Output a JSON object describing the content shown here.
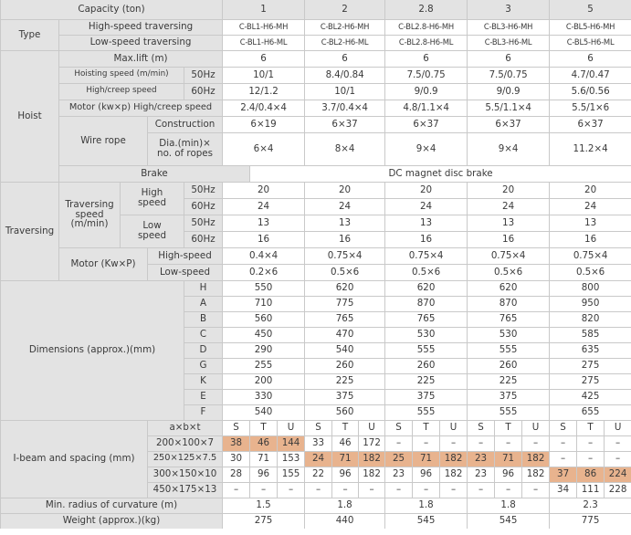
{
  "headers": {
    "capacity_label": "Capacity (ton)",
    "capacities": [
      "1",
      "2",
      "2.8",
      "3",
      "5"
    ]
  },
  "type": {
    "label": "Type",
    "high_speed_label": "High-speed traversing",
    "low_speed_label": "Low-speed traversing",
    "high_speed_models": [
      "C-BL1-H6-MH",
      "C-BL2-H6-MH",
      "C-BL2.8-H6-MH",
      "C-BL3-H6-MH",
      "C-BL5-H6-MH"
    ],
    "low_speed_models": [
      "C-BL1-H6-ML",
      "C-BL2-H6-ML",
      "C-BL2.8-H6-ML",
      "C-BL3-H6-ML",
      "C-BL5-H6-ML"
    ]
  },
  "hoist": {
    "label": "Hoist",
    "max_lift_label": "Max.lift (m)",
    "max_lift": [
      "6",
      "6",
      "6",
      "6",
      "6"
    ],
    "hoisting_speed_label": "Hoisting speed (m/min)",
    "hz50": "50Hz",
    "hz60": "60Hz",
    "hoisting_speed_50": [
      "10/1",
      "8.4/0.84",
      "7.5/0.75",
      "7.5/0.75",
      "4.7/0.47"
    ],
    "high_creep_speed_label": "High/creep speed",
    "hoisting_speed_60": [
      "12/1.2",
      "10/1",
      "9/0.9",
      "9/0.9",
      "5.6/0.56"
    ],
    "motor_label": "Motor (kw×p) High/creep speed",
    "motor": [
      "2.4/0.4×4",
      "3.7/0.4×4",
      "4.8/1.1×4",
      "5.5/1.1×4",
      "5.5/1×6"
    ],
    "wire_rope_label": "Wire rope",
    "construction_label": "Construction",
    "construction": [
      "6×19",
      "6×37",
      "6×37",
      "6×37",
      "6×37"
    ],
    "dia_label_1": "Dia.(min)×",
    "dia_label_2": "no. of ropes",
    "dia": [
      "6×4",
      "8×4",
      "9×4",
      "9×4",
      "11.2×4"
    ]
  },
  "brake": {
    "label": "Brake",
    "value": "DC magnet disc brake"
  },
  "traversing": {
    "label": "Traversing",
    "speed_label_1": "Traversing",
    "speed_label_2": "speed",
    "speed_label_3": "(m/min)",
    "high_label_1": "High",
    "low_label_1": "Low",
    "speed_word": "speed",
    "hz50": "50Hz",
    "hz60": "60Hz",
    "high_50": [
      "20",
      "20",
      "20",
      "20",
      "20"
    ],
    "high_60": [
      "24",
      "24",
      "24",
      "24",
      "24"
    ],
    "low_50": [
      "13",
      "13",
      "13",
      "13",
      "13"
    ],
    "low_60": [
      "16",
      "16",
      "16",
      "16",
      "16"
    ],
    "motor_label": "Motor (Kw×P)",
    "motor_high_label": "High-speed",
    "motor_low_label": "Low-speed",
    "motor_high": [
      "0.4×4",
      "0.75×4",
      "0.75×4",
      "0.75×4",
      "0.75×4"
    ],
    "motor_low": [
      "0.2×6",
      "0.5×6",
      "0.5×6",
      "0.5×6",
      "0.5×6"
    ]
  },
  "dimensions": {
    "label": "Dimensions (approx.)(mm)",
    "rows": [
      {
        "key": "H",
        "values": [
          "550",
          "620",
          "620",
          "620",
          "800"
        ]
      },
      {
        "key": "A",
        "values": [
          "710",
          "775",
          "870",
          "870",
          "950"
        ]
      },
      {
        "key": "B",
        "values": [
          "560",
          "765",
          "765",
          "765",
          "820"
        ]
      },
      {
        "key": "C",
        "values": [
          "450",
          "470",
          "530",
          "530",
          "585"
        ]
      },
      {
        "key": "D",
        "values": [
          "290",
          "540",
          "555",
          "555",
          "635"
        ]
      },
      {
        "key": "G",
        "values": [
          "255",
          "260",
          "260",
          "260",
          "275"
        ]
      },
      {
        "key": "K",
        "values": [
          "200",
          "225",
          "225",
          "225",
          "275"
        ]
      },
      {
        "key": "E",
        "values": [
          "330",
          "375",
          "375",
          "375",
          "425"
        ]
      },
      {
        "key": "F",
        "values": [
          "540",
          "560",
          "555",
          "555",
          "655"
        ]
      }
    ]
  },
  "ibeam": {
    "label": "I-beam and spacing (mm)",
    "axbxt_label": "a×b×t",
    "stu": [
      "S",
      "T",
      "U"
    ],
    "rows": [
      {
        "size": "200×100×7",
        "values": [
          "38",
          "46",
          "144",
          "33",
          "46",
          "172",
          "–",
          "–",
          "–",
          "–",
          "–",
          "–",
          "–",
          "–",
          "–"
        ]
      },
      {
        "size": "250×125×7.5",
        "values": [
          "30",
          "71",
          "153",
          "24",
          "71",
          "182",
          "25",
          "71",
          "182",
          "23",
          "71",
          "182",
          "–",
          "–",
          "–"
        ]
      },
      {
        "size": "300×150×10",
        "values": [
          "28",
          "96",
          "155",
          "22",
          "96",
          "182",
          "23",
          "96",
          "182",
          "23",
          "96",
          "182",
          "37",
          "86",
          "224"
        ]
      },
      {
        "size": "450×175×13",
        "values": [
          "–",
          "–",
          "–",
          "–",
          "–",
          "–",
          "–",
          "–",
          "–",
          "–",
          "–",
          "–",
          "34",
          "111",
          "228"
        ]
      }
    ]
  },
  "radius": {
    "label": "Min. radius of curvature (m)",
    "values": [
      "1.5",
      "1.8",
      "1.8",
      "1.8",
      "2.3"
    ]
  },
  "weight": {
    "label": "Weight (approx.)(kg)",
    "values": [
      "275",
      "440",
      "545",
      "545",
      "775"
    ]
  },
  "colors": {
    "header_bg": "#e3e3e3",
    "highlight_bg": "#e8b38e",
    "border": "#c9c9c9",
    "text": "#3a3a3a"
  }
}
